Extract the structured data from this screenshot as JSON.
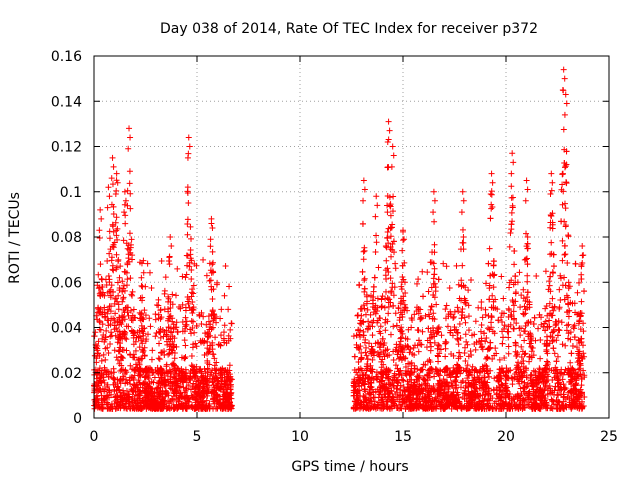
{
  "chart_data": {
    "type": "scatter",
    "title": "Day 038 of 2014, Rate Of TEC Index for receiver p372",
    "xlabel": "GPS time / hours",
    "ylabel": "ROTI / TECUs",
    "xlim": [
      0,
      25
    ],
    "ylim": [
      0,
      0.16
    ],
    "xticks": [
      0,
      5,
      10,
      15,
      20,
      25
    ],
    "yticks": [
      0,
      0.02,
      0.04,
      0.06,
      0.08,
      0.1,
      0.12,
      0.14,
      0.16
    ],
    "ytick_labels": [
      "0",
      "0.02",
      "0.04",
      "0.06",
      "0.08",
      "0.1",
      "0.12",
      "0.14",
      "0.16"
    ],
    "xtick_labels": [
      "0",
      "5",
      "10",
      "15",
      "20",
      "25"
    ],
    "grid": true,
    "marker": "+",
    "color": "#ff0000",
    "segments": [
      {
        "x_start": 0.0,
        "x_end": 6.7
      },
      {
        "x_start": 12.6,
        "x_end": 23.8
      }
    ],
    "peaks": [
      {
        "x": 0.3,
        "y": 0.092
      },
      {
        "x": 0.7,
        "y": 0.102
      },
      {
        "x": 0.9,
        "y": 0.115
      },
      {
        "x": 1.1,
        "y": 0.108
      },
      {
        "x": 1.5,
        "y": 0.1
      },
      {
        "x": 1.7,
        "y": 0.128
      },
      {
        "x": 2.3,
        "y": 0.062
      },
      {
        "x": 3.7,
        "y": 0.08
      },
      {
        "x": 4.6,
        "y": 0.124
      },
      {
        "x": 5.7,
        "y": 0.088
      },
      {
        "x": 13.1,
        "y": 0.105
      },
      {
        "x": 13.7,
        "y": 0.098
      },
      {
        "x": 14.3,
        "y": 0.131
      },
      {
        "x": 14.5,
        "y": 0.12
      },
      {
        "x": 15.0,
        "y": 0.083
      },
      {
        "x": 16.5,
        "y": 0.1
      },
      {
        "x": 17.9,
        "y": 0.1
      },
      {
        "x": 19.3,
        "y": 0.108
      },
      {
        "x": 20.3,
        "y": 0.117
      },
      {
        "x": 21.0,
        "y": 0.105
      },
      {
        "x": 22.2,
        "y": 0.108
      },
      {
        "x": 22.8,
        "y": 0.154
      },
      {
        "x": 22.9,
        "y": 0.143
      },
      {
        "x": 23.7,
        "y": 0.076
      }
    ]
  }
}
